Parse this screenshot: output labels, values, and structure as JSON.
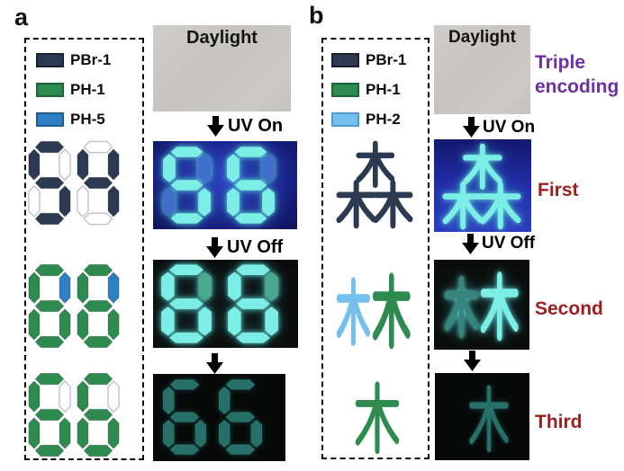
{
  "colors": {
    "navy": "#2b3a50",
    "green": "#2e8b4f",
    "blue": "#2f80c3",
    "lightblue": "#74bfec",
    "off": "#ffffff",
    "off_stroke": "#c2c7cc",
    "glow_cyan": "#7deee6",
    "glow_dim_blue": "#3f6fca",
    "glow_dim_green": "#4aa98c",
    "glow_faint": "#2c7f78",
    "glow_teal_dim": "#35857c",
    "purple": "#6e2fa3",
    "dark_red": "#9e1e1e",
    "uv_blue": "#1b2490",
    "photo_black": "#0a0d0b",
    "daylight_gray": "#c9c6c2"
  },
  "panel_a": {
    "label": "a",
    "legend": [
      {
        "name": "PBr-1",
        "color": "navy"
      },
      {
        "name": "PH-1",
        "color": "green"
      },
      {
        "name": "PH-5",
        "color": "blue"
      }
    ],
    "designs": [
      {
        "value": "54",
        "digits": [
          {
            "A": "navy",
            "B": "off",
            "C": "navy",
            "D": "navy",
            "E": "off",
            "F": "navy",
            "G": "navy"
          },
          {
            "A": "off",
            "B": "navy",
            "C": "navy",
            "D": "off",
            "E": "off",
            "F": "navy",
            "G": "navy"
          }
        ]
      },
      {
        "value": "88",
        "digits": [
          {
            "A": "green",
            "B": "blue",
            "C": "green",
            "D": "green",
            "E": "green",
            "F": "green",
            "G": "green"
          },
          {
            "A": "green",
            "B": "blue",
            "C": "green",
            "D": "green",
            "E": "green",
            "F": "green",
            "G": "green"
          }
        ]
      },
      {
        "value": "66",
        "digits": [
          {
            "A": "green",
            "B": "off",
            "C": "green",
            "D": "green",
            "E": "green",
            "F": "green",
            "G": "green"
          },
          {
            "A": "green",
            "B": "off",
            "C": "green",
            "D": "green",
            "E": "green",
            "F": "green",
            "G": "green"
          }
        ]
      }
    ],
    "photos": {
      "daylight": {
        "label": "Daylight"
      },
      "uv_on": {
        "step_label": "UV On",
        "value": "88",
        "digits": [
          {
            "A": "glow_cyan",
            "B": "glow_dim_blue",
            "C": "glow_cyan",
            "D": "glow_cyan",
            "E": "glow_dim_blue",
            "F": "glow_cyan",
            "G": "glow_cyan"
          },
          {
            "A": "glow_cyan",
            "B": "glow_dim_blue",
            "C": "glow_cyan",
            "D": "glow_cyan",
            "E": "glow_cyan",
            "F": "glow_cyan",
            "G": "glow_cyan"
          }
        ]
      },
      "uv_off": {
        "step_label": "UV Off",
        "value": "88",
        "digits": [
          {
            "A": "glow_cyan",
            "B": "glow_dim_green",
            "C": "glow_cyan",
            "D": "glow_cyan",
            "E": "glow_cyan",
            "F": "glow_cyan",
            "G": "glow_cyan"
          },
          {
            "A": "glow_cyan",
            "B": "glow_dim_green",
            "C": "glow_cyan",
            "D": "glow_cyan",
            "E": "glow_cyan",
            "F": "glow_cyan",
            "G": "glow_cyan"
          }
        ]
      },
      "afterglow": {
        "value": "66",
        "digits": [
          {
            "A": "glow_faint",
            "B": "none",
            "C": "glow_faint",
            "D": "glow_faint",
            "E": "glow_faint",
            "F": "glow_faint",
            "G": "glow_faint"
          },
          {
            "A": "glow_faint",
            "B": "none",
            "C": "glow_faint",
            "D": "glow_faint",
            "E": "glow_faint",
            "F": "glow_faint",
            "G": "glow_faint"
          }
        ]
      }
    }
  },
  "panel_b": {
    "label": "b",
    "legend": [
      {
        "name": "PBr-1",
        "color": "navy"
      },
      {
        "name": "PH-1",
        "color": "green"
      },
      {
        "name": "PH-2",
        "color": "lightblue"
      }
    ],
    "designs": [
      {
        "char": "森",
        "glyph": "sen",
        "parts": {
          "all": "navy"
        }
      },
      {
        "char": "林",
        "glyph": "lin",
        "parts": {
          "left": "lightblue",
          "right": "green"
        }
      },
      {
        "char": "木",
        "glyph": "mu",
        "parts": {
          "all": "green"
        }
      }
    ],
    "photos": {
      "daylight": {
        "label": "Daylight"
      },
      "uv_on": {
        "step_label": "UV On",
        "char": "森",
        "glyph": "sen",
        "parts": {
          "all": "glow_cyan"
        }
      },
      "uv_off": {
        "step_label": "UV Off",
        "char": "林",
        "glyph": "lin",
        "parts": {
          "left": "glow_teal_dim",
          "right": "glow_cyan"
        }
      },
      "afterglow": {
        "char": "木",
        "glyph": "mu",
        "parts": {
          "all": "glow_faint"
        }
      }
    },
    "side_labels": {
      "encoding": "Triple encoding",
      "first": "First",
      "second": "Second",
      "third": "Third"
    }
  }
}
